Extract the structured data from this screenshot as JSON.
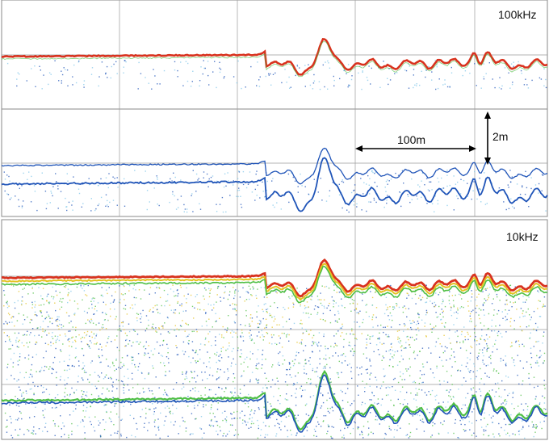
{
  "panels": {
    "upper": {
      "frequency_label": "100kHz"
    },
    "lower": {
      "frequency_label": "10kHz"
    }
  },
  "scale_bars": {
    "horizontal": {
      "label": "100m"
    },
    "vertical": {
      "label": "2m"
    }
  },
  "colors": {
    "background": "#ffffff",
    "grid": "#9a9a9a",
    "strong_echo": "#d8321e",
    "medium_echo": "#e4c223",
    "weak_echo": "#4fbf45",
    "faint_echo": "#1f54b8",
    "noise": "#7fc6e8"
  }
}
